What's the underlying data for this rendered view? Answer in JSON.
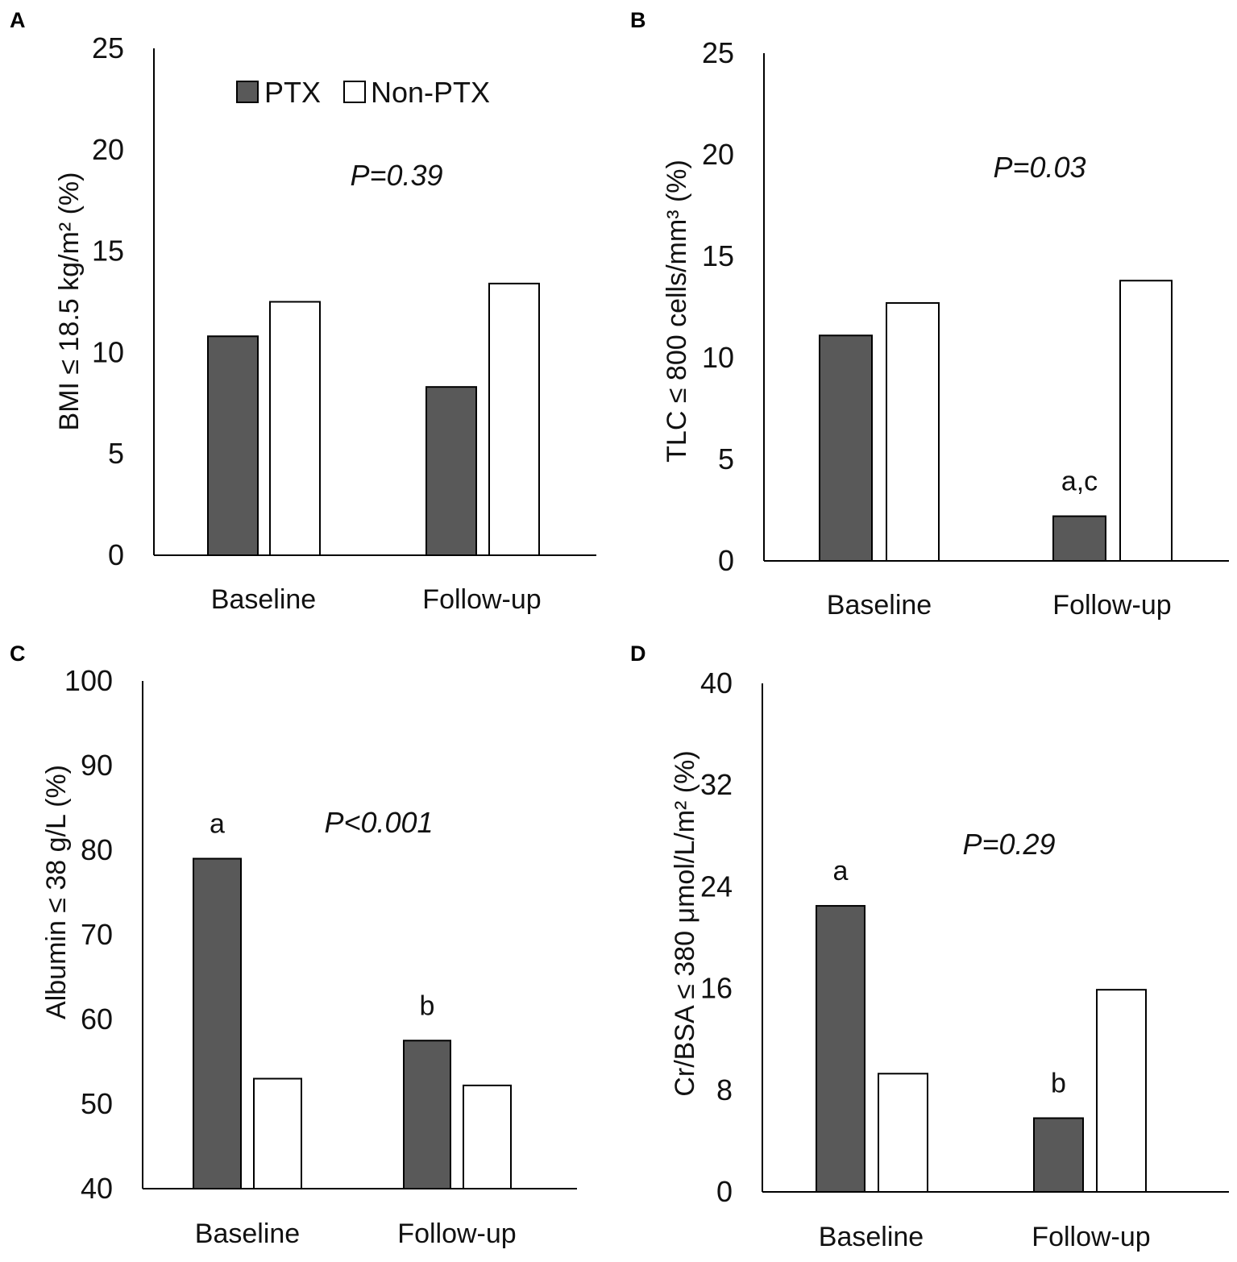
{
  "legend": [
    {
      "label": "PTX",
      "color": "#595959"
    },
    {
      "label": "Non-PTX",
      "color": "#ffffff"
    }
  ],
  "chart_data": [
    {
      "type": "bar",
      "panel": "A",
      "ylabel": "BMI ≤ 18.5 kg/m² (%)",
      "ylim": [
        0,
        25
      ],
      "yticks": [
        0,
        5,
        10,
        15,
        20,
        25
      ],
      "categories": [
        "Baseline",
        "Follow-up"
      ],
      "series": [
        {
          "name": "PTX",
          "values": [
            10.8,
            8.3
          ]
        },
        {
          "name": "Non-PTX",
          "values": [
            12.5,
            13.4
          ]
        }
      ],
      "p_value": "P=0.39",
      "annotations": []
    },
    {
      "type": "bar",
      "panel": "B",
      "ylabel": "TLC ≤ 800 cells/mm³ (%)",
      "ylim": [
        0,
        25
      ],
      "yticks": [
        0,
        5,
        10,
        15,
        20,
        25
      ],
      "categories": [
        "Baseline",
        "Follow-up"
      ],
      "series": [
        {
          "name": "PTX",
          "values": [
            11.1,
            2.2
          ]
        },
        {
          "name": "Non-PTX",
          "values": [
            12.7,
            13.8
          ]
        }
      ],
      "p_value": "P=0.03",
      "annotations": [
        {
          "series": "PTX",
          "category": "Follow-up",
          "text": "a,c"
        }
      ]
    },
    {
      "type": "bar",
      "panel": "C",
      "ylabel": "Albumin ≤ 38 g/L (%)",
      "ylim": [
        40,
        100
      ],
      "yticks": [
        40,
        50,
        60,
        70,
        80,
        90,
        100
      ],
      "categories": [
        "Baseline",
        "Follow-up"
      ],
      "series": [
        {
          "name": "PTX",
          "values": [
            79.0,
            57.5
          ]
        },
        {
          "name": "Non-PTX",
          "values": [
            53.0,
            52.2
          ]
        }
      ],
      "p_value": "P<0.001",
      "annotations": [
        {
          "series": "PTX",
          "category": "Baseline",
          "text": "a"
        },
        {
          "series": "PTX",
          "category": "Follow-up",
          "text": "b"
        }
      ]
    },
    {
      "type": "bar",
      "panel": "D",
      "ylabel": "Cr/BSA ≤ 380 μmol/L/m² (%)",
      "ylim": [
        0,
        40
      ],
      "yticks": [
        0,
        8,
        16,
        24,
        32,
        40
      ],
      "categories": [
        "Baseline",
        "Follow-up"
      ],
      "series": [
        {
          "name": "PTX",
          "values": [
            22.5,
            5.8
          ]
        },
        {
          "name": "Non-PTX",
          "values": [
            9.3,
            15.9
          ]
        }
      ],
      "p_value": "P=0.29",
      "annotations": [
        {
          "series": "PTX",
          "category": "Baseline",
          "text": "a"
        },
        {
          "series": "PTX",
          "category": "Follow-up",
          "text": "b"
        }
      ]
    }
  ]
}
